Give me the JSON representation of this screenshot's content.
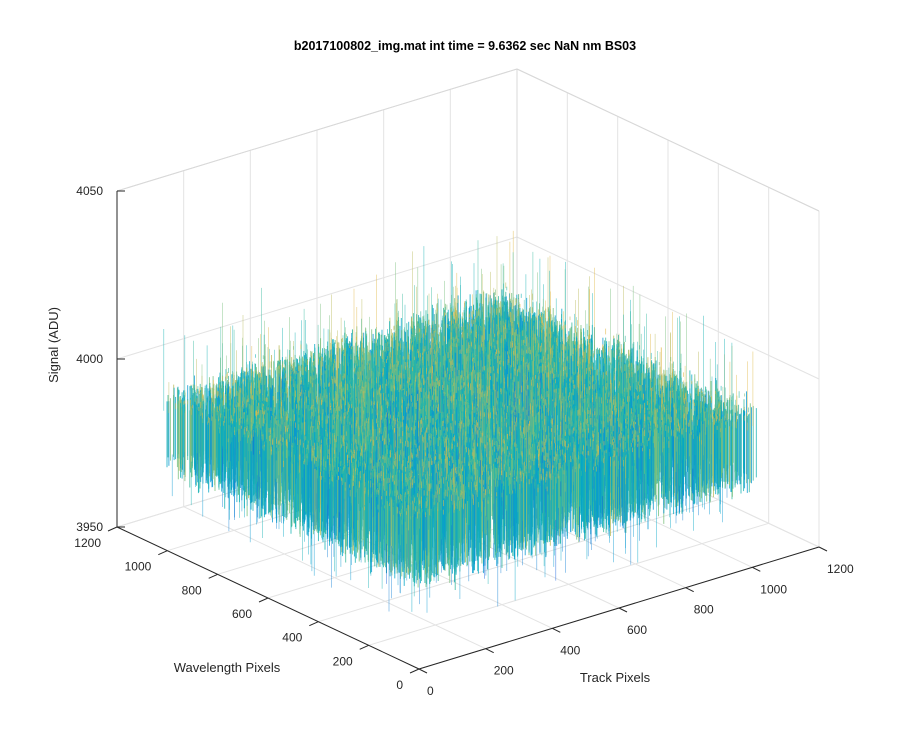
{
  "chart_data": {
    "type": "surface",
    "title": "b2017100802_img.mat int time = 9.6362 sec  NaN nm BS03",
    "xlabel": "Track Pixels",
    "ylabel": "Wavelength Pixels",
    "zlabel": "Signal (ADU)",
    "xlim": [
      0,
      1200
    ],
    "ylim": [
      0,
      1200
    ],
    "zlim": [
      3950,
      4050
    ],
    "x_ticks": [
      "0",
      "200",
      "400",
      "600",
      "800",
      "1000",
      "1200"
    ],
    "y_ticks": [
      "0",
      "200",
      "400",
      "600",
      "800",
      "1000",
      "1200"
    ],
    "z_ticks": [
      "3950",
      "4000",
      "4050"
    ],
    "surface": {
      "x_range": [
        1,
        1024
      ],
      "y_range": [
        1,
        1024
      ],
      "mean_signal": 3985,
      "spread_core": [
        3975,
        3997
      ],
      "spread_spikes": [
        3960,
        4020
      ]
    },
    "grid": true,
    "colormap": "parula"
  }
}
